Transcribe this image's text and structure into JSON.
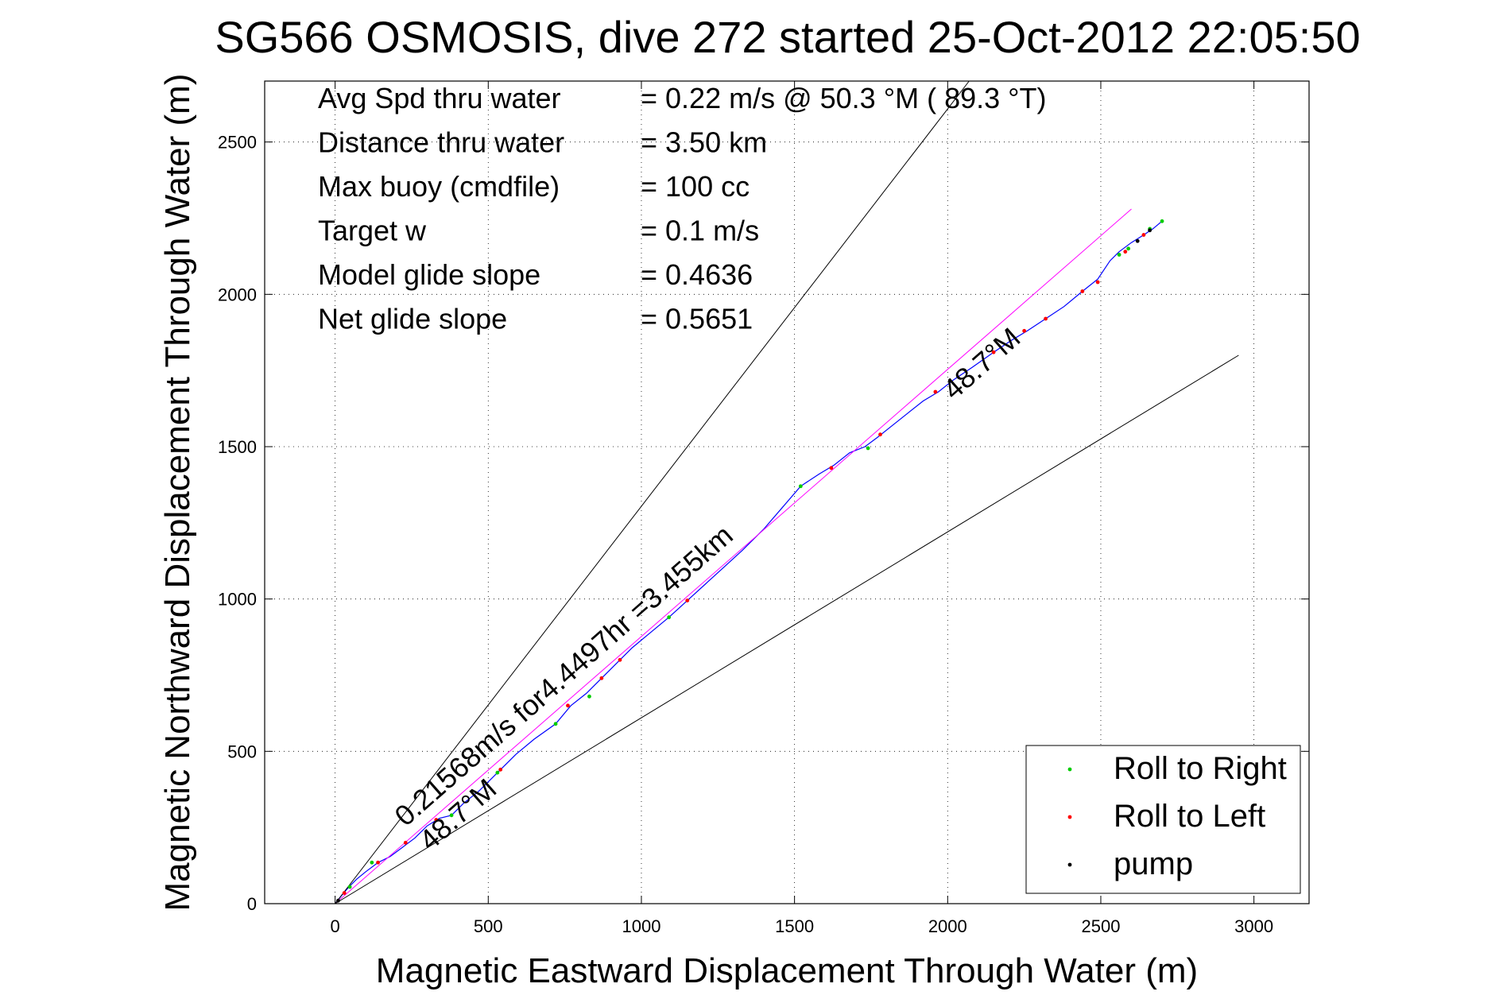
{
  "chart_data": {
    "type": "line",
    "title": "SG566 OSMOSIS, dive 272 started 25-Oct-2012 22:05:50",
    "xlabel": "Magnetic Eastward Displacement Through Water (m)",
    "ylabel": "Magnetic Northward Displacement Through Water (m)",
    "xlim": [
      -230,
      3180
    ],
    "ylim": [
      0,
      2700
    ],
    "grid": true,
    "xticks": [
      0,
      500,
      1000,
      1500,
      2000,
      2500,
      3000
    ],
    "yticks": [
      0,
      500,
      1000,
      1500,
      2000,
      2500
    ],
    "stats": [
      {
        "label": "Avg Spd thru water",
        "value": "=  0.22 m/s @  50.3 °M ( 89.3 °T)"
      },
      {
        "label": "Distance thru water",
        "value": "=  3.50 km"
      },
      {
        "label": "Max buoy (cmdfile)",
        "value": "= 100 cc"
      },
      {
        "label": "Target w",
        "value": "= 0.1 m/s"
      },
      {
        "label": "Model glide slope",
        "value": "= 0.4636"
      },
      {
        "label": "Net glide slope",
        "value": "= 0.5651"
      }
    ],
    "annotations": [
      {
        "text": "0.21568m/s for4.4497hr =3.455km",
        "x": 230,
        "y": 250,
        "angle_deg": 41.3
      },
      {
        "text": "48.7°M",
        "x": 310,
        "y": 170,
        "angle_deg": 41.3
      },
      {
        "text": "48.7°M",
        "x": 2020,
        "y": 1650,
        "angle_deg": 41.3
      }
    ],
    "series": [
      {
        "name": "",
        "role": "track",
        "color": "#0000ff",
        "x": [
          0,
          20,
          45,
          70,
          100,
          140,
          180,
          220,
          260,
          300,
          340,
          380,
          420,
          470,
          530,
          590,
          650,
          720,
          770,
          820,
          870,
          920,
          970,
          1030,
          1090,
          1150,
          1210,
          1270,
          1330,
          1400,
          1460,
          1520,
          1580,
          1630,
          1680,
          1730,
          1770,
          1820,
          1870,
          1920,
          1970,
          2020,
          2080,
          2150,
          2210,
          2260,
          2320,
          2380,
          2440,
          2490,
          2530,
          2560,
          2600,
          2640,
          2670,
          2700
        ],
        "y": [
          0,
          25,
          55,
          80,
          105,
          135,
          155,
          185,
          215,
          255,
          280,
          290,
          330,
          370,
          430,
          490,
          540,
          590,
          650,
          690,
          740,
          790,
          840,
          890,
          940,
          995,
          1050,
          1105,
          1160,
          1230,
          1300,
          1370,
          1410,
          1440,
          1480,
          1500,
          1530,
          1570,
          1610,
          1650,
          1680,
          1720,
          1760,
          1810,
          1850,
          1880,
          1920,
          1960,
          2010,
          2050,
          2110,
          2140,
          2170,
          2195,
          2215,
          2240
        ]
      },
      {
        "name": "",
        "role": "fit",
        "color": "#ff00ff",
        "x": [
          0,
          2600
        ],
        "y": [
          0,
          2280
        ]
      },
      {
        "name": "",
        "role": "bound",
        "color": "#000000",
        "x": [
          0,
          2070
        ],
        "y": [
          0,
          2700
        ]
      },
      {
        "name": "",
        "role": "bound",
        "color": "#000000",
        "x": [
          0,
          2950
        ],
        "y": [
          0,
          1800
        ]
      },
      {
        "name": "Roll to Right",
        "role": "markers",
        "color": "#00cc00",
        "x": [
          48,
          120,
          380,
          530,
          720,
          830,
          1090,
          1520,
          1740,
          2560,
          2590,
          2660,
          2700
        ],
        "y": [
          55,
          135,
          290,
          430,
          590,
          680,
          940,
          1370,
          1495,
          2130,
          2150,
          2215,
          2240
        ]
      },
      {
        "name": "Roll to Left",
        "role": "markers",
        "color": "#ff0000",
        "x": [
          30,
          140,
          230,
          330,
          540,
          760,
          870,
          930,
          1150,
          1620,
          1780,
          1960,
          2150,
          2250,
          2320,
          2440,
          2490,
          2580,
          2640
        ],
        "y": [
          35,
          135,
          200,
          275,
          440,
          650,
          740,
          800,
          995,
          1430,
          1540,
          1680,
          1810,
          1880,
          1920,
          2010,
          2040,
          2140,
          2195
        ]
      },
      {
        "name": "pump",
        "role": "markers",
        "color": "#000000",
        "x": [
          10,
          2620,
          2660
        ],
        "y": [
          10,
          2175,
          2210
        ]
      }
    ],
    "legend": {
      "placement": "bottom-right",
      "entries": [
        "Roll to Right",
        "Roll to Left",
        "pump"
      ]
    }
  }
}
